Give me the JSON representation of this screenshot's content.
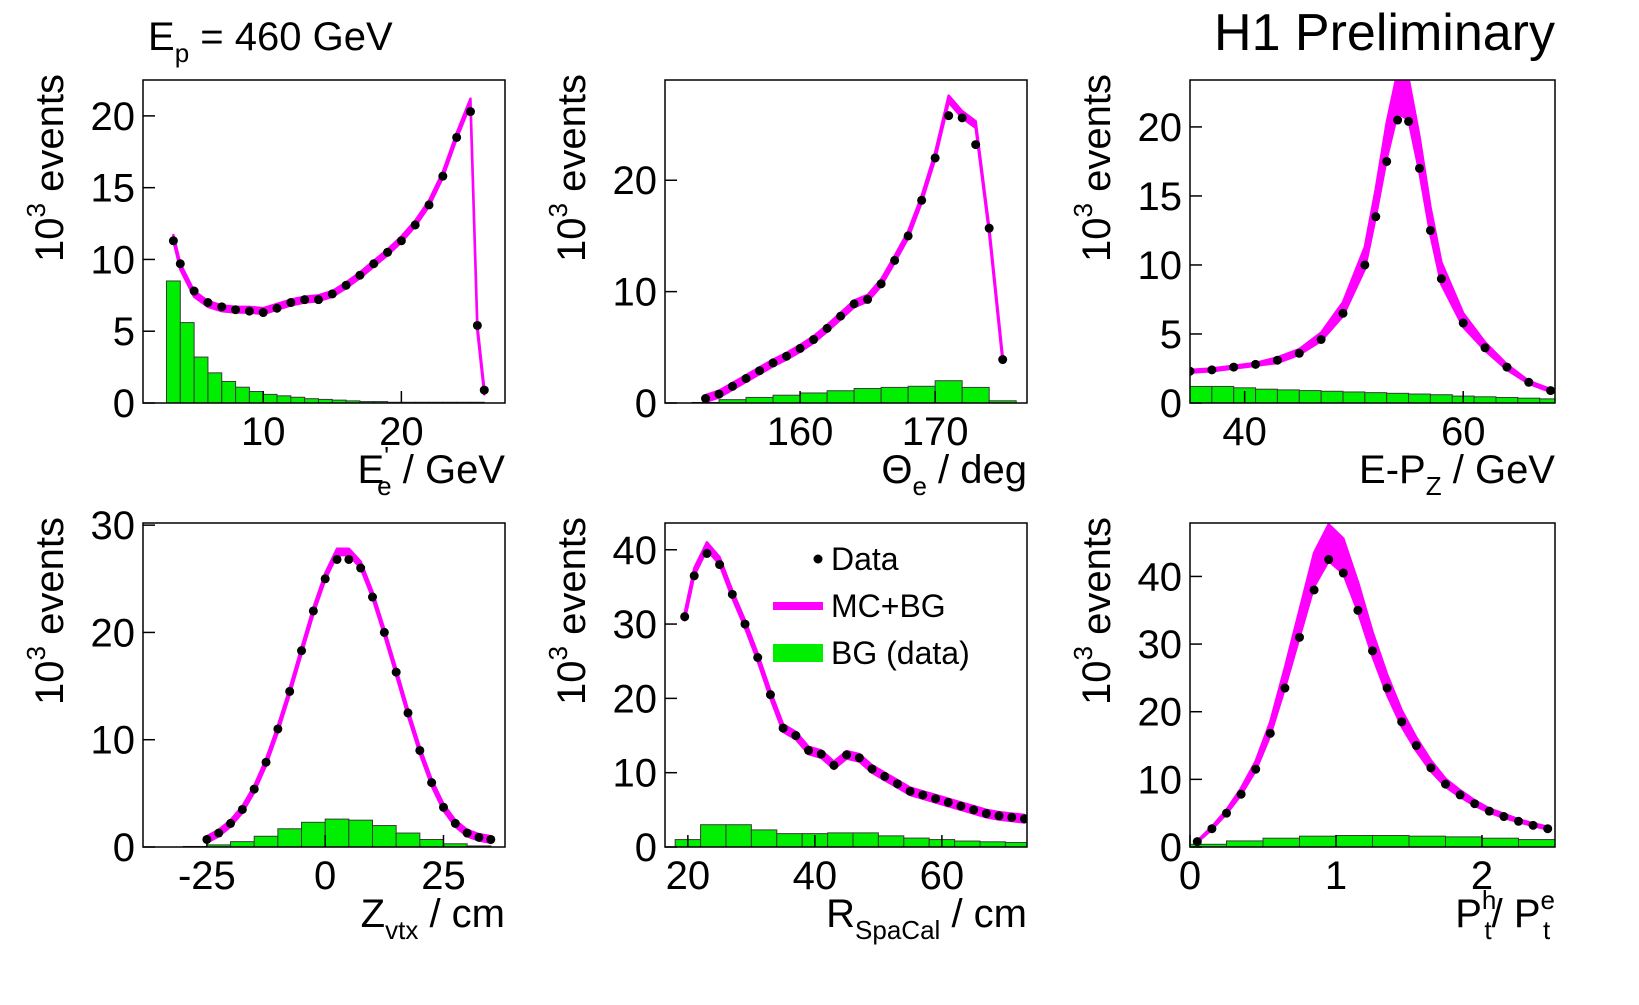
{
  "title": "H1 Preliminary",
  "subtitle": [
    {
      "text": "E"
    },
    {
      "text": "p",
      "shift": "sub"
    },
    {
      "text": " = 460 GeV"
    }
  ],
  "chart_data": [
    {
      "type": "histogram",
      "x_label": [
        {
          "text": "E"
        },
        {
          "text": "'",
          "shift": "sup"
        },
        {
          "text": "e",
          "shift": "sub"
        },
        {
          "text": " / GeV"
        }
      ],
      "y_label": [
        {
          "text": "10"
        },
        {
          "text": "3",
          "shift": "sup"
        },
        {
          "text": " events"
        }
      ],
      "xlim": [
        1.3,
        27.5
      ],
      "ylim": [
        0,
        22.5
      ],
      "xticks": [
        10,
        20
      ],
      "yticks": [
        0,
        5,
        10,
        15,
        20
      ],
      "x": [
        3.5,
        4,
        5,
        6,
        7,
        8,
        9,
        10,
        11,
        12,
        13,
        14,
        15,
        16,
        17,
        18,
        19,
        20,
        21,
        22,
        23,
        24,
        25,
        25.5,
        26
      ],
      "series": [
        {
          "name": "Data",
          "color": "#000000",
          "values": [
            11.3,
            9.7,
            7.8,
            7,
            6.7,
            6.5,
            6.4,
            6.3,
            6.6,
            7.0,
            7.2,
            7.2,
            7.6,
            8.2,
            8.9,
            9.7,
            10.5,
            11.3,
            12.4,
            13.8,
            15.8,
            18.5,
            20.3,
            5.4,
            0.9
          ]
        },
        {
          "name": "MC+BG",
          "color": "#ff00ff",
          "values": [
            11.5,
            9.5,
            7.6,
            6.9,
            6.6,
            6.5,
            6.5,
            6.4,
            6.7,
            7.0,
            7.2,
            7.3,
            7.6,
            8.2,
            8.9,
            9.7,
            10.5,
            11.4,
            12.5,
            13.9,
            15.9,
            18.6,
            21.0,
            5.2,
            0.8
          ],
          "errors": [
            0.2,
            0.2,
            0.2,
            0.2,
            0.2,
            0.2,
            0.2,
            0.2,
            0.2,
            0.2,
            0.2,
            0.2,
            0.2,
            0.2,
            0.2,
            0.2,
            0.2,
            0.2,
            0.2,
            0.2,
            0.2,
            0.2,
            0.2,
            0.2,
            0.2
          ]
        },
        {
          "name": "BG (data)",
          "color": "#00ee00",
          "bins": [
            3,
            4,
            5,
            6,
            7,
            8,
            9,
            10,
            11,
            12,
            13,
            14,
            15,
            16,
            17,
            18,
            19,
            20,
            21,
            22,
            23,
            24,
            25,
            26
          ],
          "values": [
            8.5,
            5.6,
            3.2,
            2.1,
            1.5,
            1.1,
            0.8,
            0.6,
            0.5,
            0.4,
            0.3,
            0.25,
            0.2,
            0.15,
            0.1,
            0.1,
            0.05,
            0.05,
            0.05,
            0.05,
            0.05,
            0.05,
            0.05
          ]
        }
      ]
    },
    {
      "type": "histogram",
      "x_label": [
        {
          "text": "Θ"
        },
        {
          "text": "e",
          "shift": "sub"
        },
        {
          "text": " / deg"
        }
      ],
      "y_label": [
        {
          "text": "10"
        },
        {
          "text": "3",
          "shift": "sup"
        },
        {
          "text": " events"
        }
      ],
      "xlim": [
        150,
        176.8
      ],
      "ylim": [
        0,
        29
      ],
      "xticks": [
        160,
        170
      ],
      "yticks": [
        0,
        10,
        20
      ],
      "x": [
        153,
        154,
        155,
        156,
        157,
        158,
        159,
        160,
        161,
        162,
        163,
        164,
        165,
        166,
        167,
        168,
        169,
        170,
        171,
        172,
        173,
        174,
        175
      ],
      "series": [
        {
          "name": "Data",
          "color": "#000000",
          "values": [
            0.4,
            0.8,
            1.5,
            2.2,
            2.9,
            3.6,
            4.2,
            4.9,
            5.7,
            6.7,
            7.8,
            8.9,
            9.3,
            10.7,
            12.8,
            15.0,
            18.2,
            22.0,
            25.8,
            25.6,
            23.2,
            15.7,
            3.9
          ]
        },
        {
          "name": "MC+BG",
          "color": "#ff00ff",
          "values": [
            0.4,
            0.8,
            1.5,
            2.2,
            2.9,
            3.6,
            4.2,
            4.9,
            5.7,
            6.7,
            7.8,
            8.9,
            9.4,
            10.8,
            12.9,
            15.1,
            18.3,
            22.2,
            27.3,
            25.9,
            25.0,
            15.5,
            3.9
          ],
          "errors": [
            0.3,
            0.3,
            0.3,
            0.3,
            0.3,
            0.3,
            0.3,
            0.3,
            0.3,
            0.3,
            0.3,
            0.3,
            0.3,
            0.3,
            0.3,
            0.3,
            0.3,
            0.3,
            0.3,
            0.3,
            0.3,
            0.3,
            0.3
          ]
        },
        {
          "name": "BG (data)",
          "color": "#00ee00",
          "bins": [
            150,
            152,
            154,
            156,
            158,
            160,
            162,
            164,
            166,
            168,
            170,
            172,
            174,
            176
          ],
          "values": [
            0,
            0.05,
            0.3,
            0.5,
            0.7,
            0.9,
            1.1,
            1.3,
            1.4,
            1.5,
            2.0,
            1.4,
            0.2
          ]
        }
      ]
    },
    {
      "type": "histogram",
      "x_label": [
        {
          "text": "E-P"
        },
        {
          "text": "Z",
          "shift": "sub"
        },
        {
          "text": " / GeV"
        }
      ],
      "y_label": [
        {
          "text": "10"
        },
        {
          "text": "3",
          "shift": "sup"
        },
        {
          "text": " events"
        }
      ],
      "xlim": [
        35,
        68.4
      ],
      "ylim": [
        0,
        23.4
      ],
      "xticks": [
        40,
        60
      ],
      "yticks": [
        0,
        5,
        10,
        15,
        20
      ],
      "x": [
        35,
        37,
        39,
        41,
        43,
        45,
        47,
        49,
        51,
        52,
        53,
        54,
        55,
        56,
        57,
        58,
        60,
        62,
        64,
        66,
        68
      ],
      "series": [
        {
          "name": "Data",
          "color": "#000000",
          "values": [
            2.3,
            2.4,
            2.6,
            2.8,
            3.1,
            3.6,
            4.6,
            6.5,
            10,
            13.5,
            17.5,
            20.5,
            20.4,
            17,
            12.5,
            9,
            5.8,
            4,
            2.6,
            1.5,
            0.9
          ]
        },
        {
          "name": "MC+BG",
          "color": "#ff00ff",
          "values": [
            2.3,
            2.4,
            2.6,
            2.8,
            3.1,
            3.7,
            4.8,
            6.8,
            10.5,
            14.5,
            19,
            22.5,
            22,
            18,
            13.2,
            9.4,
            6,
            4.1,
            2.6,
            1.5,
            0.9
          ],
          "errors": [
            0.1,
            0.1,
            0.1,
            0.1,
            0.2,
            0.2,
            0.3,
            0.5,
            0.8,
            1.0,
            1.3,
            1.5,
            1.5,
            1.3,
            1.0,
            0.8,
            0.5,
            0.3,
            0.2,
            0.1,
            0.1
          ]
        },
        {
          "name": "BG (data)",
          "color": "#00ee00",
          "bins": [
            35,
            37,
            39,
            41,
            43,
            45,
            47,
            49,
            51,
            53,
            55,
            57,
            59,
            61,
            63,
            65,
            67,
            69
          ],
          "values": [
            1.2,
            1.2,
            1.1,
            1.0,
            0.95,
            0.9,
            0.85,
            0.8,
            0.75,
            0.7,
            0.65,
            0.6,
            0.5,
            0.45,
            0.4,
            0.35,
            0.3
          ]
        }
      ]
    },
    {
      "type": "histogram",
      "x_label": [
        {
          "text": "Z"
        },
        {
          "text": "vtx",
          "shift": "sub"
        },
        {
          "text": "  / cm"
        }
      ],
      "y_label": [
        {
          "text": "10"
        },
        {
          "text": "3",
          "shift": "sup"
        },
        {
          "text": " events"
        }
      ],
      "xlim": [
        -38.5,
        38
      ],
      "ylim": [
        0,
        30.2
      ],
      "xticks": [
        -25,
        0,
        25
      ],
      "yticks": [
        0,
        10,
        20,
        30
      ],
      "x": [
        -25,
        -22.5,
        -20,
        -17.5,
        -15,
        -12.5,
        -10,
        -7.5,
        -5,
        -2.5,
        0,
        2.5,
        5,
        7.5,
        10,
        12.5,
        15,
        17.5,
        20,
        22.5,
        25,
        27.5,
        30,
        32.5,
        35
      ],
      "series": [
        {
          "name": "Data",
          "color": "#000000",
          "values": [
            0.7,
            1.3,
            2.2,
            3.5,
            5.4,
            7.9,
            11,
            14.5,
            18.3,
            22,
            25,
            26.8,
            26.8,
            26,
            23.3,
            20,
            16.3,
            12.5,
            9,
            6,
            3.7,
            2.2,
            1.3,
            0.9,
            0.7
          ]
        },
        {
          "name": "MC+BG",
          "color": "#ff00ff",
          "values": [
            0.7,
            1.3,
            2.2,
            3.5,
            5.4,
            7.9,
            11,
            14.5,
            18.3,
            22,
            25.2,
            27.5,
            27.5,
            26.3,
            23.5,
            20,
            16.3,
            12.5,
            9,
            6,
            3.7,
            2.2,
            1.3,
            0.9,
            0.7
          ],
          "errors": [
            0.3,
            0.3,
            0.3,
            0.3,
            0.3,
            0.3,
            0.3,
            0.3,
            0.3,
            0.3,
            0.3,
            0.3,
            0.3,
            0.3,
            0.3,
            0.3,
            0.3,
            0.3,
            0.3,
            0.3,
            0.3,
            0.3,
            0.3,
            0.3,
            0.3
          ]
        },
        {
          "name": "BG (data)",
          "color": "#00ee00",
          "bins": [
            -35,
            -30,
            -25,
            -20,
            -15,
            -10,
            -5,
            0,
            5,
            10,
            15,
            20,
            25,
            30,
            35
          ],
          "values": [
            0,
            0.05,
            0.2,
            0.5,
            1.0,
            1.7,
            2.3,
            2.6,
            2.5,
            2.0,
            1.3,
            0.7,
            0.3,
            0.1
          ]
        }
      ]
    },
    {
      "type": "histogram",
      "legend": "upper right",
      "x_label": [
        {
          "text": "R"
        },
        {
          "text": "SpaCal",
          "shift": "sub"
        },
        {
          "text": "  / cm"
        }
      ],
      "y_label": [
        {
          "text": "10"
        },
        {
          "text": "3",
          "shift": "sup"
        },
        {
          "text": " events"
        }
      ],
      "xlim": [
        16.4,
        73.4
      ],
      "ylim": [
        0,
        43.6
      ],
      "xticks": [
        20,
        40,
        60
      ],
      "yticks": [
        0,
        10,
        20,
        30,
        40
      ],
      "x": [
        19.5,
        21,
        23,
        25,
        27,
        29,
        31,
        33,
        35,
        37,
        39,
        41,
        43,
        45,
        47,
        49,
        51,
        53,
        55,
        57,
        59,
        61,
        63,
        65,
        67,
        69,
        71,
        73
      ],
      "series": [
        {
          "name": "Data",
          "color": "#000000",
          "values": [
            31,
            36.5,
            39.5,
            38,
            34,
            30,
            25.5,
            20.5,
            16,
            15,
            13,
            12.5,
            11,
            12.4,
            12,
            10.5,
            9.5,
            8.5,
            7.5,
            7,
            6.5,
            6,
            5.5,
            5,
            4.5,
            4.2,
            4,
            3.8
          ]
        },
        {
          "name": "MC+BG",
          "color": "#ff00ff",
          "values": [
            31,
            37,
            40.5,
            38.5,
            34,
            30,
            25.5,
            20.5,
            16,
            15,
            13,
            12.5,
            11,
            12.4,
            12,
            10.5,
            9.5,
            8.5,
            7.5,
            7,
            6.5,
            6,
            5.5,
            5,
            4.5,
            4.2,
            4,
            3.8
          ],
          "errors": [
            0.5,
            0.5,
            0.5,
            0.5,
            0.5,
            0.5,
            0.5,
            0.5,
            0.5,
            0.5,
            0.5,
            0.5,
            0.5,
            0.5,
            0.5,
            0.5,
            0.5,
            0.5,
            0.5,
            0.5,
            0.5,
            0.5,
            0.5,
            0.5,
            0.5,
            0.5,
            0.5,
            0.5
          ]
        },
        {
          "name": "BG (data)",
          "color": "#00ee00",
          "bins": [
            18,
            22,
            26,
            30,
            34,
            38,
            42,
            46,
            50,
            54,
            58,
            62,
            66,
            70,
            74
          ],
          "values": [
            1.0,
            3.0,
            3.0,
            2.3,
            1.8,
            1.8,
            1.9,
            1.9,
            1.5,
            1.2,
            1.0,
            0.8,
            0.7,
            0.6
          ]
        }
      ]
    },
    {
      "type": "histogram",
      "x_label": [
        {
          "text": "P"
        },
        {
          "text": "h",
          "shift": "sup"
        },
        {
          "text": "t",
          "shift": "sub"
        },
        {
          "text": "/ P"
        },
        {
          "text": "e",
          "shift": "sup"
        },
        {
          "text": "t",
          "shift": "sub"
        }
      ],
      "y_label": [
        {
          "text": "10"
        },
        {
          "text": "3",
          "shift": "sup"
        },
        {
          "text": " events"
        }
      ],
      "xlim": [
        0,
        2.5
      ],
      "ylim": [
        0,
        47.9
      ],
      "xticks": [
        0,
        1,
        2
      ],
      "yticks": [
        0,
        10,
        20,
        30,
        40
      ],
      "x": [
        0.05,
        0.15,
        0.25,
        0.35,
        0.45,
        0.55,
        0.65,
        0.75,
        0.85,
        0.95,
        1.05,
        1.15,
        1.25,
        1.35,
        1.45,
        1.55,
        1.65,
        1.75,
        1.85,
        1.95,
        2.05,
        2.15,
        2.25,
        2.35,
        2.45
      ],
      "series": [
        {
          "name": "Data",
          "color": "#000000",
          "values": [
            0.8,
            2.7,
            5,
            7.8,
            11.5,
            16.8,
            23.5,
            31,
            38,
            42.5,
            40.5,
            35,
            29,
            23.5,
            18.5,
            15,
            11.7,
            9.3,
            7.7,
            6.4,
            5.3,
            4.5,
            3.8,
            3.2,
            2.7
          ]
        },
        {
          "name": "MC+BG",
          "color": "#ff00ff",
          "values": [
            0.8,
            2.8,
            5.2,
            8.2,
            12,
            17.5,
            25,
            33,
            41,
            45,
            43,
            37,
            30,
            24,
            19,
            15.2,
            12,
            9.5,
            7.9,
            6.5,
            5.4,
            4.6,
            3.9,
            3.3,
            2.8
          ],
          "errors": [
            0.1,
            0.2,
            0.3,
            0.5,
            0.7,
            1,
            1.5,
            2,
            2.5,
            2.7,
            2.6,
            2.2,
            1.8,
            1.5,
            1.2,
            1,
            0.8,
            0.6,
            0.5,
            0.4,
            0.3,
            0.3,
            0.2,
            0.2,
            0.2
          ]
        },
        {
          "name": "BG (data)",
          "color": "#00ee00",
          "bins": [
            0,
            0.25,
            0.5,
            0.75,
            1,
            1.25,
            1.5,
            1.75,
            2,
            2.25,
            2.5
          ],
          "values": [
            0.4,
            0.9,
            1.3,
            1.6,
            1.7,
            1.7,
            1.6,
            1.5,
            1.3,
            1.1
          ]
        }
      ]
    }
  ]
}
